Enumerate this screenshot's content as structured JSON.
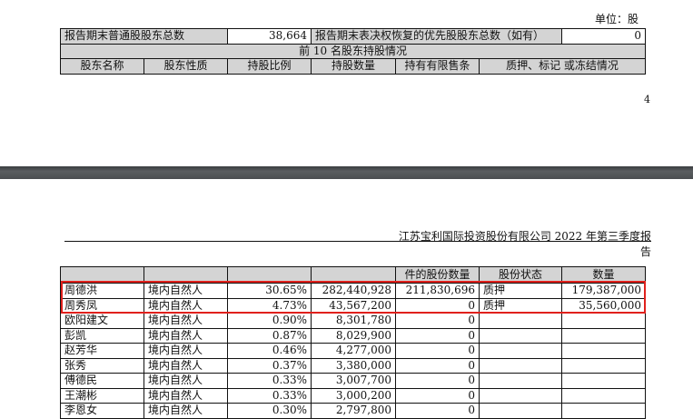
{
  "page1": {
    "unit": "单位：股",
    "summary": {
      "label1": "报告期末普通股股东总数",
      "value1": "38,664",
      "label2": "报告期末表决权恢复的优先股股东总数（如有）",
      "value2": "0"
    },
    "section_title": "前 10 名股东持股情况",
    "columns": [
      "股东名称",
      "股东性质",
      "持股比例",
      "持股数量",
      "持有有限售条",
      "质押、标记 或冻结情况"
    ],
    "page_number": "4"
  },
  "page2": {
    "header": "江苏宝利国际投资股份有限公司 2022 年第三季度报告",
    "columns": [
      "",
      "",
      "",
      "",
      "件的股份数量",
      "股份状态",
      "数量"
    ],
    "rows": [
      [
        "周德洪",
        "境内自然人",
        "30.65%",
        "282,440,928",
        "211,830,696",
        "质押",
        "179,387,000"
      ],
      [
        "周秀凤",
        "境内自然人",
        "4.73%",
        "43,567,200",
        "0",
        "质押",
        "35,560,000"
      ],
      [
        "欧阳建文",
        "境内自然人",
        "0.90%",
        "8,301,780",
        "0",
        "",
        ""
      ],
      [
        "彭凯",
        "境内自然人",
        "0.87%",
        "8,029,900",
        "0",
        "",
        ""
      ],
      [
        "赵芳华",
        "境内自然人",
        "0.46%",
        "4,277,000",
        "0",
        "",
        ""
      ],
      [
        "张秀",
        "境内自然人",
        "0.37%",
        "3,380,000",
        "0",
        "",
        ""
      ],
      [
        "傅德民",
        "境内自然人",
        "0.33%",
        "3,007,700",
        "0",
        "",
        ""
      ],
      [
        "王潮彬",
        "境内自然人",
        "0.33%",
        "3,000,200",
        "0",
        "",
        ""
      ],
      [
        "李恩女",
        "境内自然人",
        "0.30%",
        "2,797,800",
        "0",
        "",
        ""
      ]
    ],
    "highlight_color": "#e0201c"
  }
}
